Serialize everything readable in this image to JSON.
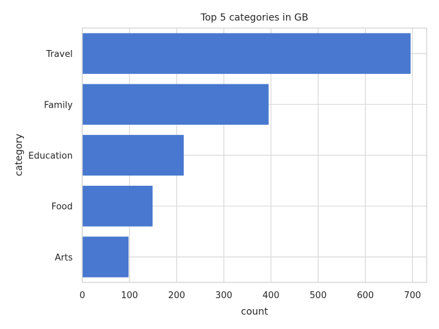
{
  "chart_data": {
    "type": "bar",
    "orientation": "horizontal",
    "title": "Top 5 categories in GB",
    "xlabel": "count",
    "ylabel": "category",
    "categories": [
      "Travel",
      "Family",
      "Education",
      "Food",
      "Arts"
    ],
    "values": [
      696,
      395,
      215,
      149,
      98
    ],
    "xlim": [
      0,
      730
    ],
    "xticks": [
      0,
      100,
      200,
      300,
      400,
      500,
      600,
      700
    ],
    "grid": true,
    "bar_color": "#4878cf"
  }
}
